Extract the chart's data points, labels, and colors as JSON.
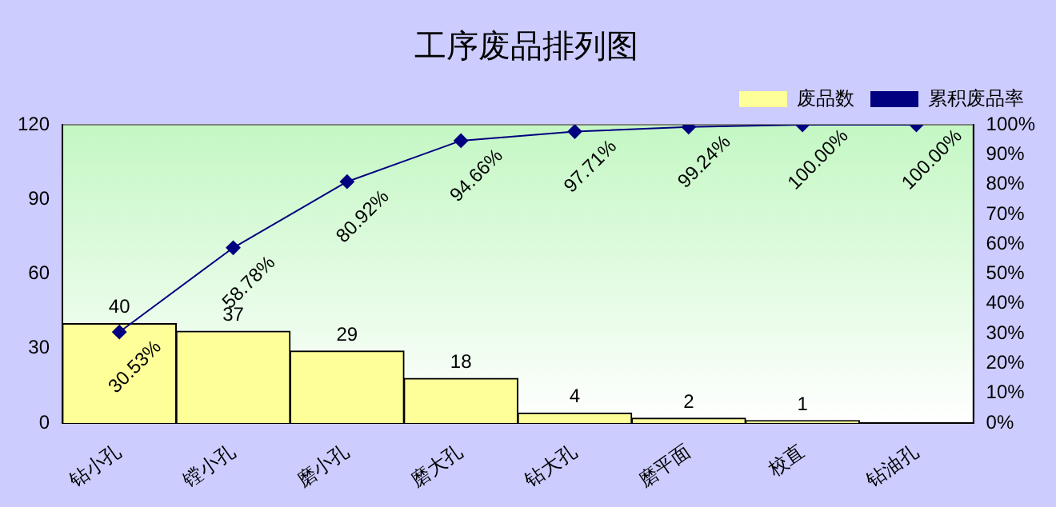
{
  "chart_data": {
    "type": "bar",
    "title": "工序废品排列图",
    "categories": [
      "钻小孔",
      "镗小孔",
      "磨小孔",
      "磨大孔",
      "钻大孔",
      "磨平面",
      "校直",
      "钻油孔"
    ],
    "series": [
      {
        "name": "废品数",
        "color": "#ffff99",
        "values": [
          40,
          37,
          29,
          18,
          4,
          2,
          1,
          0
        ],
        "value_labels": [
          "40",
          "37",
          "29",
          "18",
          "4",
          "2",
          "1",
          null
        ]
      },
      {
        "name": "累积废品率",
        "type": "line",
        "axis": "y2",
        "color": "#000080",
        "marker": "diamond",
        "values": [
          30.53,
          58.78,
          80.92,
          94.66,
          97.71,
          99.24,
          100.0,
          100.0
        ],
        "value_labels": [
          "30.53%",
          "58.78%",
          "80.92%",
          "94.66%",
          "97.71%",
          "99.24%",
          "100.00%",
          "100.00%"
        ]
      }
    ],
    "ylim": [
      0,
      120
    ],
    "yticks": [
      0,
      30,
      60,
      90,
      120
    ],
    "y2lim": [
      0,
      100
    ],
    "y2ticks": [
      {
        "value": 0,
        "label": "0%"
      },
      {
        "value": 10,
        "label": "10%"
      },
      {
        "value": 20,
        "label": "20%"
      },
      {
        "value": 30,
        "label": "30%"
      },
      {
        "value": 40,
        "label": "40%"
      },
      {
        "value": 50,
        "label": "50%"
      },
      {
        "value": 60,
        "label": "60%"
      },
      {
        "value": 70,
        "label": "70%"
      },
      {
        "value": 80,
        "label": "80%"
      },
      {
        "value": 90,
        "label": "90%"
      },
      {
        "value": 100,
        "label": "100%"
      }
    ],
    "grid": false,
    "legend": "top right"
  }
}
